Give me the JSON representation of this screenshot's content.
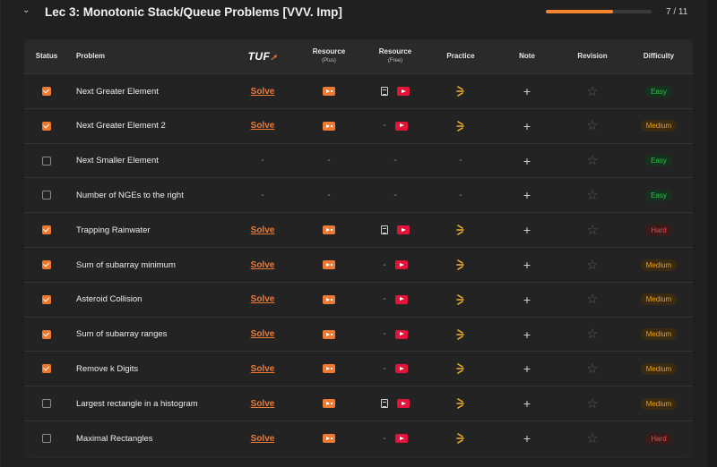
{
  "header": {
    "chevron": "⌄",
    "title": "Lec 3: Monotonic Stack/Queue Problems [VVV. Imp]",
    "progress_fraction": 0.636,
    "progress_text": "7 / 11"
  },
  "columns": {
    "status": "Status",
    "problem": "Problem",
    "tuf_logo": "TUF",
    "resource_plus": "Resource",
    "resource_plus_sub": "(Plus)",
    "resource_free": "Resource",
    "resource_free_sub": "(Free)",
    "practice": "Practice",
    "note": "Note",
    "revision": "Revision",
    "difficulty": "Difficulty"
  },
  "colors": {
    "accent": "#f07a31",
    "easy": "#2ec24b",
    "medium": "#e8a21b",
    "hard": "#ec4848",
    "youtube": "#e3133a"
  },
  "rows": [
    {
      "checked": true,
      "problem": "Next Greater Element",
      "solve": "Solve",
      "plus": true,
      "free_doc": true,
      "free_yt": true,
      "practice": true,
      "note": "+",
      "difficulty": "Easy"
    },
    {
      "checked": true,
      "problem": "Next Greater Element 2",
      "solve": "Solve",
      "plus": true,
      "free_doc": false,
      "free_yt": true,
      "practice": true,
      "note": "+",
      "difficulty": "Medium"
    },
    {
      "checked": false,
      "problem": "Next Smaller Element",
      "solve": "-",
      "plus": false,
      "free_doc": false,
      "free_yt": false,
      "practice": false,
      "note": "+",
      "difficulty": "Easy"
    },
    {
      "checked": false,
      "problem": "Number of NGEs to the right",
      "solve": "-",
      "plus": false,
      "free_doc": false,
      "free_yt": false,
      "practice": false,
      "note": "+",
      "difficulty": "Easy"
    },
    {
      "checked": true,
      "problem": "Trapping Rainwater",
      "solve": "Solve",
      "plus": true,
      "free_doc": true,
      "free_yt": true,
      "practice": true,
      "note": "+",
      "difficulty": "Hard"
    },
    {
      "checked": true,
      "problem": "Sum of subarray minimum",
      "solve": "Solve",
      "plus": true,
      "free_doc": false,
      "free_yt": true,
      "practice": true,
      "note": "+",
      "difficulty": "Medium"
    },
    {
      "checked": true,
      "problem": "Asteroid Collision",
      "solve": "Solve",
      "plus": true,
      "free_doc": false,
      "free_yt": true,
      "practice": true,
      "note": "+",
      "difficulty": "Medium"
    },
    {
      "checked": true,
      "problem": "Sum of subarray ranges",
      "solve": "Solve",
      "plus": true,
      "free_doc": false,
      "free_yt": true,
      "practice": true,
      "note": "+",
      "difficulty": "Medium"
    },
    {
      "checked": true,
      "problem": "Remove k Digits",
      "solve": "Solve",
      "plus": true,
      "free_doc": false,
      "free_yt": true,
      "practice": true,
      "note": "+",
      "difficulty": "Medium"
    },
    {
      "checked": false,
      "problem": "Largest rectangle in a histogram",
      "solve": "Solve",
      "plus": true,
      "free_doc": true,
      "free_yt": true,
      "practice": true,
      "note": "+",
      "difficulty": "Medium"
    },
    {
      "checked": false,
      "problem": "Maximal Rectangles",
      "solve": "Solve",
      "plus": true,
      "free_doc": false,
      "free_yt": true,
      "practice": true,
      "note": "+",
      "difficulty": "Hard"
    }
  ],
  "icons": {
    "free_missing": "-",
    "cell_missing": "-",
    "revision": "☆",
    "practice": "practice-leetcode-icon",
    "plus_resource": "play-badge-icon",
    "free_article": "article-doc-icon",
    "free_video": "youtube-icon"
  }
}
